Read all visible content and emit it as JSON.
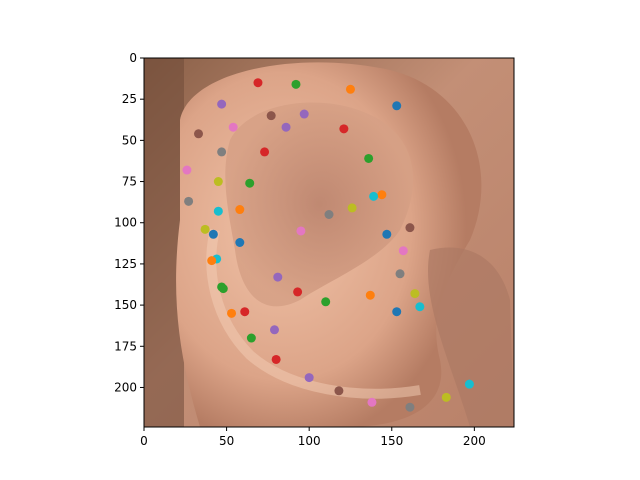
{
  "chart_data": {
    "type": "scatter",
    "title": "",
    "xlabel": "",
    "ylabel": "",
    "xlim": [
      0,
      224
    ],
    "ylim": [
      224,
      0
    ],
    "x_ticks": [
      0,
      50,
      100,
      150,
      200
    ],
    "y_ticks": [
      0,
      25,
      50,
      75,
      100,
      125,
      150,
      175,
      200
    ],
    "background_image": "ear-photo",
    "points": [
      {
        "x": 69,
        "y": 15,
        "color": "#d62728"
      },
      {
        "x": 92,
        "y": 16,
        "color": "#2ca02c"
      },
      {
        "x": 125,
        "y": 19,
        "color": "#ff7f0e"
      },
      {
        "x": 47,
        "y": 28,
        "color": "#9467bd"
      },
      {
        "x": 153,
        "y": 29,
        "color": "#1f77b4"
      },
      {
        "x": 77,
        "y": 35,
        "color": "#8c564b"
      },
      {
        "x": 97,
        "y": 34,
        "color": "#9467bd"
      },
      {
        "x": 54,
        "y": 42,
        "color": "#e377c2"
      },
      {
        "x": 86,
        "y": 42,
        "color": "#9467bd"
      },
      {
        "x": 121,
        "y": 43,
        "color": "#d62728"
      },
      {
        "x": 33,
        "y": 46,
        "color": "#8c564b"
      },
      {
        "x": 47,
        "y": 57,
        "color": "#7f7f7f"
      },
      {
        "x": 73,
        "y": 57,
        "color": "#d62728"
      },
      {
        "x": 136,
        "y": 61,
        "color": "#2ca02c"
      },
      {
        "x": 26,
        "y": 68,
        "color": "#e377c2"
      },
      {
        "x": 45,
        "y": 75,
        "color": "#bcbd22"
      },
      {
        "x": 64,
        "y": 76,
        "color": "#2ca02c"
      },
      {
        "x": 144,
        "y": 83,
        "color": "#ff7f0e"
      },
      {
        "x": 139,
        "y": 84,
        "color": "#17becf"
      },
      {
        "x": 27,
        "y": 87,
        "color": "#7f7f7f"
      },
      {
        "x": 126,
        "y": 91,
        "color": "#bcbd22"
      },
      {
        "x": 58,
        "y": 92,
        "color": "#ff7f0e"
      },
      {
        "x": 45,
        "y": 93,
        "color": "#17becf"
      },
      {
        "x": 112,
        "y": 95,
        "color": "#7f7f7f"
      },
      {
        "x": 161,
        "y": 103,
        "color": "#8c564b"
      },
      {
        "x": 37,
        "y": 104,
        "color": "#bcbd22"
      },
      {
        "x": 95,
        "y": 105,
        "color": "#e377c2"
      },
      {
        "x": 147,
        "y": 107,
        "color": "#1f77b4"
      },
      {
        "x": 42,
        "y": 107,
        "color": "#1f77b4"
      },
      {
        "x": 58,
        "y": 112,
        "color": "#1f77b4"
      },
      {
        "x": 157,
        "y": 117,
        "color": "#e377c2"
      },
      {
        "x": 44,
        "y": 122,
        "color": "#17becf"
      },
      {
        "x": 41,
        "y": 123,
        "color": "#ff7f0e"
      },
      {
        "x": 155,
        "y": 131,
        "color": "#7f7f7f"
      },
      {
        "x": 81,
        "y": 133,
        "color": "#9467bd"
      },
      {
        "x": 47,
        "y": 139,
        "color": "#2ca02c"
      },
      {
        "x": 48,
        "y": 140,
        "color": "#2ca02c"
      },
      {
        "x": 93,
        "y": 142,
        "color": "#d62728"
      },
      {
        "x": 164,
        "y": 143,
        "color": "#bcbd22"
      },
      {
        "x": 137,
        "y": 144,
        "color": "#ff7f0e"
      },
      {
        "x": 110,
        "y": 148,
        "color": "#2ca02c"
      },
      {
        "x": 167,
        "y": 151,
        "color": "#17becf"
      },
      {
        "x": 53,
        "y": 155,
        "color": "#ff7f0e"
      },
      {
        "x": 61,
        "y": 154,
        "color": "#d62728"
      },
      {
        "x": 153,
        "y": 154,
        "color": "#1f77b4"
      },
      {
        "x": 79,
        "y": 165,
        "color": "#9467bd"
      },
      {
        "x": 65,
        "y": 170,
        "color": "#2ca02c"
      },
      {
        "x": 80,
        "y": 183,
        "color": "#d62728"
      },
      {
        "x": 100,
        "y": 194,
        "color": "#9467bd"
      },
      {
        "x": 197,
        "y": 198,
        "color": "#17becf"
      },
      {
        "x": 118,
        "y": 202,
        "color": "#8c564b"
      },
      {
        "x": 183,
        "y": 206,
        "color": "#bcbd22"
      },
      {
        "x": 138,
        "y": 209,
        "color": "#e377c2"
      },
      {
        "x": 161,
        "y": 212,
        "color": "#7f7f7f"
      }
    ]
  }
}
